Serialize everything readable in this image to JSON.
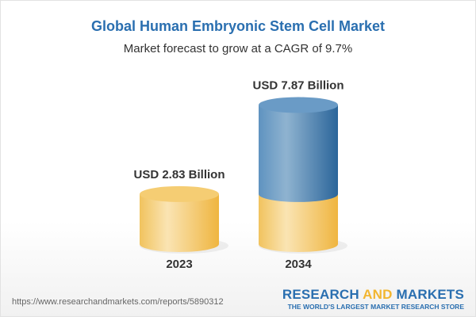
{
  "chart_data": {
    "type": "bar",
    "style": "3d-cylinder",
    "title": "Global Human Embryonic Stem Cell Market",
    "subtitle": "Market forecast to grow at a CAGR of 9.7%",
    "categories": [
      "2023",
      "2034"
    ],
    "values": [
      2.83,
      7.87
    ],
    "value_labels": [
      "USD 2.83 Billion",
      "USD 7.87 Billion"
    ],
    "unit": "USD Billion",
    "colors": {
      "base": "#f2c463",
      "growth": "#4a86b8",
      "title": "#2a6fb0"
    }
  },
  "footer": {
    "url": "https://www.researchandmarkets.com/reports/5890312",
    "logo_research": "RESEARCH ",
    "logo_and": "AND",
    "logo_markets": " MARKETS",
    "logo_tagline": "THE WORLD'S LARGEST MARKET RESEARCH STORE"
  }
}
